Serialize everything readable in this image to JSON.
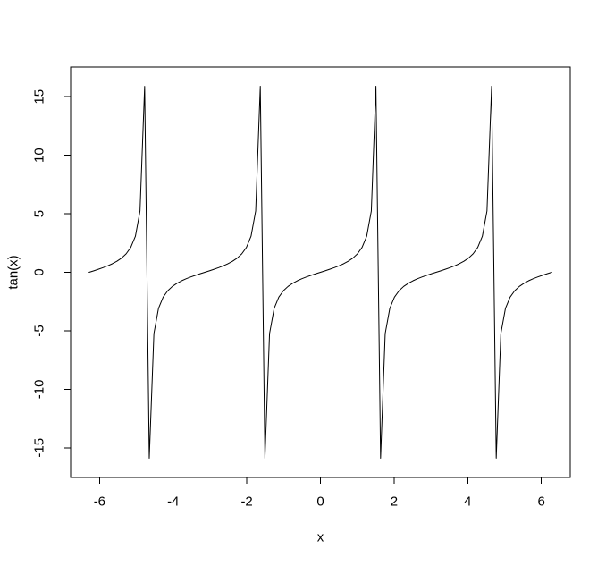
{
  "chart_data": {
    "type": "line",
    "title": "",
    "xlabel": "x",
    "ylabel": "tan(x)",
    "series": [
      {
        "name": "tan(x)",
        "function": "tan",
        "x_min": -6.2832,
        "x_max": 6.2832,
        "n_points": 101,
        "color": "#000000",
        "line_width": 1
      }
    ],
    "x_ticks": [
      -6,
      -4,
      -2,
      0,
      2,
      4,
      6
    ],
    "x_tick_labels": [
      "-6",
      "-4",
      "-2",
      "0",
      "2",
      "4",
      "6"
    ],
    "y_ticks": [
      -15,
      -10,
      -5,
      0,
      5,
      10,
      15
    ],
    "y_tick_labels": [
      "-15",
      "-10",
      "-5",
      "0",
      "5",
      "10",
      "15"
    ],
    "xlim": [
      -6.786,
      6.786
    ],
    "ylim": [
      -17.54,
      17.54
    ],
    "y_extent_approx": [
      -16.5,
      16.2
    ],
    "asymptotes_x": [
      -4.712,
      -1.571,
      1.571,
      4.712
    ],
    "grid": false,
    "legend": "none",
    "box": true,
    "background_color": "#ffffff",
    "line_color": "#000000",
    "axis_color": "#000000",
    "text_color": "#000000"
  }
}
